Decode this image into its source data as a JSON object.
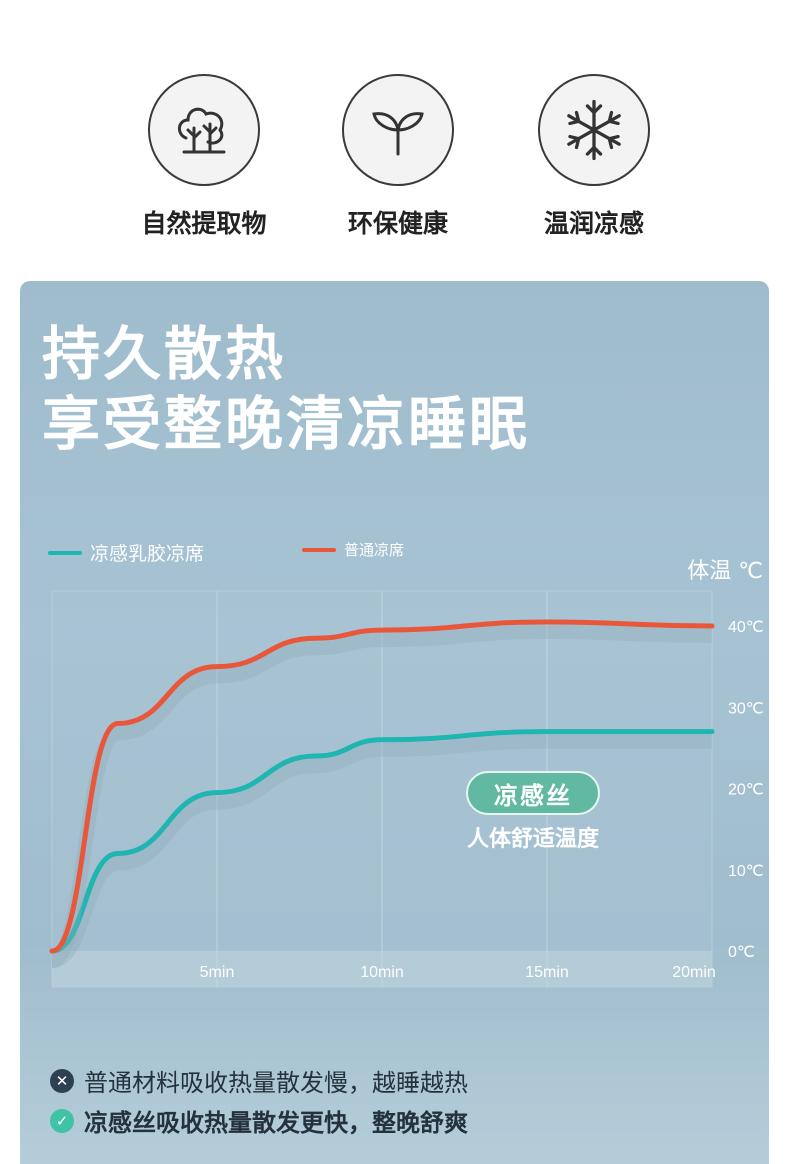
{
  "features": [
    {
      "label": "自然提取物",
      "icon": "tree-icon"
    },
    {
      "label": "环保健康",
      "icon": "sprout-icon"
    },
    {
      "label": "温润凉感",
      "icon": "snowflake-icon"
    }
  ],
  "headline": {
    "line1": "持久散热",
    "line2": "享受整晚清凉睡眠"
  },
  "colors": {
    "cool": "#1fb5b0",
    "normal": "#e8573a",
    "panel": "#a3c0d0"
  },
  "chart_data": {
    "type": "line",
    "x_ticks": [
      "5min",
      "10min",
      "15min",
      "20min"
    ],
    "y_ticks": [
      "0℃",
      "10℃",
      "20℃",
      "30℃",
      "40℃"
    ],
    "ylabel": "体温 ℃",
    "series": [
      {
        "name": "凉感乳胶凉席",
        "values": [
          [
            0,
            0
          ],
          [
            2,
            12
          ],
          [
            5,
            19.5
          ],
          [
            8,
            24
          ],
          [
            10,
            26
          ],
          [
            15,
            27
          ],
          [
            20,
            27
          ]
        ]
      },
      {
        "name": "普通凉席",
        "values": [
          [
            0,
            0
          ],
          [
            2,
            28
          ],
          [
            5,
            35
          ],
          [
            8,
            38.5
          ],
          [
            10,
            39.5
          ],
          [
            15,
            40.5
          ],
          [
            20,
            40
          ]
        ]
      }
    ]
  },
  "badge": {
    "title": "凉感丝",
    "subtitle": "人体舒适温度"
  },
  "notes": [
    {
      "icon": "x-circle-icon",
      "text": "普通材料吸收热量散发慢，越睡越热"
    },
    {
      "icon": "check-circle-icon",
      "text": "凉感丝吸收热量散发更快，整晚舒爽"
    }
  ]
}
